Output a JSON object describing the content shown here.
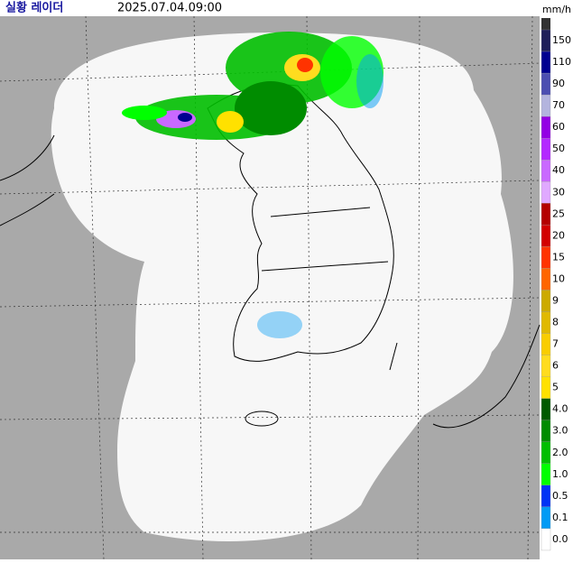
{
  "header": {
    "title": "실황 레이더",
    "timestamp": "2025.07.04.09:00"
  },
  "legend": {
    "unit": "mm/h",
    "items": [
      {
        "label": "150",
        "color": "#1f1f5a"
      },
      {
        "label": "110",
        "color": "#000090"
      },
      {
        "label": "90",
        "color": "#4c4eb1"
      },
      {
        "label": "70",
        "color": "#b3b4de"
      },
      {
        "label": "60",
        "color": "#9300e4"
      },
      {
        "label": "50",
        "color": "#b329ff"
      },
      {
        "label": "40",
        "color": "#c969ff"
      },
      {
        "label": "30",
        "color": "#e0a9ff"
      },
      {
        "label": "25",
        "color": "#b40000"
      },
      {
        "label": "20",
        "color": "#d20000"
      },
      {
        "label": "15",
        "color": "#ff3300"
      },
      {
        "label": "10",
        "color": "#ff6600"
      },
      {
        "label": "9",
        "color": "#ccaa00"
      },
      {
        "label": "8",
        "color": "#e0b900"
      },
      {
        "label": "7",
        "color": "#f9cd00"
      },
      {
        "label": "6",
        "color": "#ffdc1f"
      },
      {
        "label": "5",
        "color": "#ffe100"
      },
      {
        "label": "4.0",
        "color": "#005a00"
      },
      {
        "label": "3.0",
        "color": "#008c00"
      },
      {
        "label": "2.0",
        "color": "#00be00"
      },
      {
        "label": "1.0",
        "color": "#00ff00"
      },
      {
        "label": "0.5",
        "color": "#0033f5"
      },
      {
        "label": "0.1",
        "color": "#009bf5"
      },
      {
        "label": "0.0",
        "color": "#ffffff"
      }
    ]
  }
}
